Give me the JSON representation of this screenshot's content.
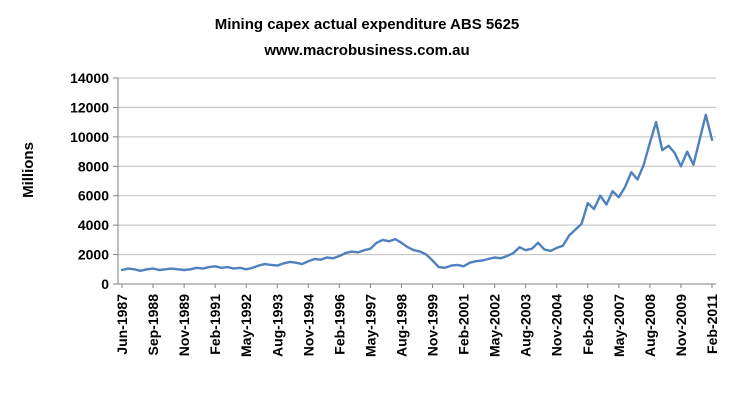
{
  "title": {
    "line1": "Mining capex actual expenditure ABS 5625",
    "line2": "www.macrobusiness.com.au"
  },
  "chart_data": {
    "type": "line",
    "title": "Mining capex actual expenditure ABS 5625",
    "subtitle": "www.macrobusiness.com.au",
    "xlabel": "",
    "ylabel": "Millions",
    "ylim": [
      0,
      14000
    ],
    "ytick_step": 2000,
    "grid": true,
    "legend_position": "none",
    "line_color": "#4F81BD",
    "grid_color": "#BFBFBF",
    "axis_color": "#808080",
    "tick_every": 5,
    "x_tick_labels": [
      "Jun-1987",
      "Sep-1988",
      "Nov-1989",
      "Feb-1991",
      "May-1992",
      "Aug-1993",
      "Nov-1994",
      "Feb-1996",
      "May-1997",
      "Aug-1998",
      "Nov-1999",
      "Feb-2001",
      "May-2002",
      "Aug-2003",
      "Nov-2004",
      "Feb-2006",
      "May-2007",
      "Aug-2008",
      "Nov-2009",
      "Feb-2011"
    ],
    "values": [
      950,
      1050,
      1000,
      900,
      1000,
      1050,
      950,
      1000,
      1050,
      1000,
      950,
      1000,
      1100,
      1050,
      1150,
      1200,
      1100,
      1150,
      1050,
      1100,
      1000,
      1100,
      1250,
      1350,
      1300,
      1250,
      1400,
      1500,
      1450,
      1350,
      1550,
      1700,
      1650,
      1800,
      1750,
      1900,
      2100,
      2200,
      2150,
      2300,
      2400,
      2800,
      3000,
      2900,
      3050,
      2800,
      2500,
      2300,
      2200,
      2000,
      1600,
      1150,
      1100,
      1250,
      1300,
      1200,
      1450,
      1550,
      1600,
      1700,
      1800,
      1750,
      1900,
      2100,
      2500,
      2300,
      2400,
      2800,
      2350,
      2250,
      2450,
      2600,
      3300,
      3700,
      4100,
      5500,
      5100,
      6000,
      5400,
      6300,
      5900,
      6600,
      7600,
      7100,
      8100,
      9600,
      11000,
      9100,
      9400,
      8900,
      8000,
      9000,
      8100,
      9800,
      11500,
      9800
    ]
  }
}
